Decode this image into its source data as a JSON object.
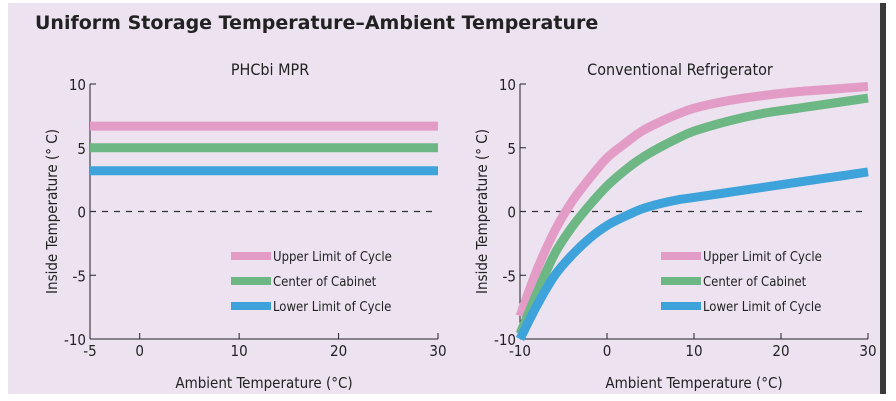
{
  "title": "Uniform Storage Temperature–Ambient Temperature",
  "colors": {
    "upper": "#e29cc6",
    "center": "#6db784",
    "lower": "#3ea2db",
    "background": "#ece2f0"
  },
  "chart_data": [
    {
      "type": "line",
      "title": "PHCbi MPR",
      "xlabel": "Ambient Temperature (°C)",
      "ylabel": "Inside Temperature (° C)",
      "xlim": [
        -5,
        30
      ],
      "ylim": [
        -10,
        10
      ],
      "xticks": [
        -5,
        0,
        10,
        20,
        30
      ],
      "yticks": [
        -10,
        -5,
        0,
        5,
        10
      ],
      "reference_line": {
        "y": 0,
        "style": "dashed"
      },
      "legend_position": "bottom-right",
      "series": [
        {
          "name": "Upper Limit of Cycle",
          "color": "upper",
          "x": [
            -5,
            30
          ],
          "y": [
            6.7,
            6.7
          ]
        },
        {
          "name": "Center of Cabinet",
          "color": "center",
          "x": [
            -5,
            30
          ],
          "y": [
            5.0,
            5.0
          ]
        },
        {
          "name": "Lower Limit of Cycle",
          "color": "lower",
          "x": [
            -5,
            30
          ],
          "y": [
            3.2,
            3.2
          ]
        }
      ]
    },
    {
      "type": "line",
      "title": "Conventional Refrigerator",
      "xlabel": "Ambient Temperature (°C)",
      "ylabel": "Inside Temperature (° C)",
      "xlim": [
        -10,
        30
      ],
      "ylim": [
        -10,
        10
      ],
      "xticks": [
        -10,
        0,
        10,
        20,
        30
      ],
      "yticks": [
        -10,
        -5,
        0,
        5,
        10
      ],
      "reference_line": {
        "y": 0,
        "style": "dashed"
      },
      "legend_position": "bottom-right",
      "series": [
        {
          "name": "Upper Limit of Cycle",
          "color": "upper",
          "x": [
            -10,
            -8,
            -6,
            -4,
            -2,
            0,
            2,
            4,
            6,
            8,
            10,
            14,
            18,
            22,
            26,
            30
          ],
          "y": [
            -8.2,
            -4.5,
            -1.5,
            0.8,
            2.6,
            4.2,
            5.3,
            6.3,
            7.0,
            7.6,
            8.1,
            8.7,
            9.1,
            9.4,
            9.6,
            9.8
          ]
        },
        {
          "name": "Center of Cabinet",
          "color": "center",
          "x": [
            -10,
            -8,
            -6,
            -4,
            -2,
            0,
            2,
            4,
            6,
            8,
            10,
            14,
            18,
            22,
            26,
            30
          ],
          "y": [
            -9.6,
            -6.3,
            -3.3,
            -1.2,
            0.5,
            2.0,
            3.2,
            4.2,
            5.0,
            5.7,
            6.3,
            7.1,
            7.7,
            8.1,
            8.5,
            8.9
          ]
        },
        {
          "name": "Lower Limit of Cycle",
          "color": "lower",
          "x": [
            -10,
            -8,
            -6,
            -4,
            -2,
            0,
            2,
            4,
            6,
            8,
            10,
            15,
            20,
            25,
            30
          ],
          "y": [
            -10,
            -7.3,
            -5.0,
            -3.4,
            -2.1,
            -1.1,
            -0.4,
            0.2,
            0.6,
            0.9,
            1.1,
            1.6,
            2.1,
            2.6,
            3.1
          ]
        }
      ]
    }
  ]
}
